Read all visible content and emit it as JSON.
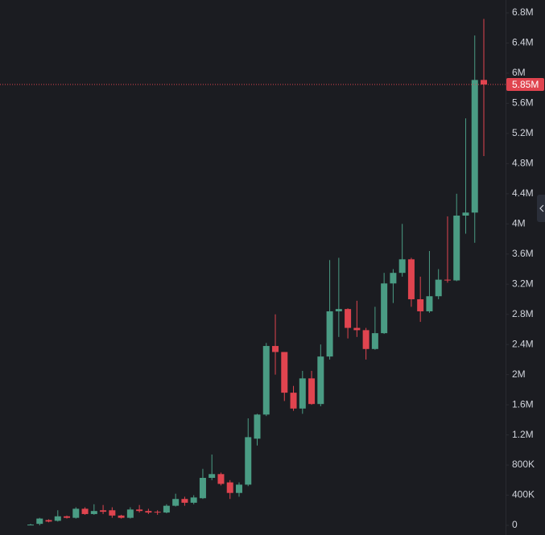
{
  "chart_data": {
    "type": "candlestick",
    "open": [
      5000,
      20000,
      70000,
      60000,
      120000,
      100000,
      220000,
      150000,
      200000,
      200000,
      130000,
      100000,
      210000,
      190000,
      180000,
      170000,
      260000,
      350000,
      300000,
      360000,
      630000,
      680000,
      570000,
      430000,
      540000,
      1150000,
      1470000,
      2380000,
      2300000,
      1760000,
      1550000,
      1950000,
      1610000,
      2240000,
      2840000,
      2870000,
      2620000,
      2590000,
      2340000,
      2550000,
      3210000,
      3350000,
      3530000,
      3000000,
      2840000,
      3040000,
      3260000,
      3250000,
      4110000,
      4150000,
      5910000
    ],
    "high": [
      20000,
      100000,
      80000,
      200000,
      130000,
      240000,
      240000,
      280000,
      270000,
      240000,
      140000,
      240000,
      270000,
      220000,
      200000,
      280000,
      420000,
      380000,
      400000,
      750000,
      940000,
      700000,
      600000,
      570000,
      1420000,
      1480000,
      2420000,
      2800000,
      2300000,
      1850000,
      2050000,
      2050000,
      2400000,
      3520000,
      3550000,
      2880000,
      2980000,
      2620000,
      2900000,
      3350000,
      3400000,
      4000000,
      3550000,
      3300000,
      3640000,
      3400000,
      4100000,
      4400000,
      5400000,
      6500000,
      6720000
    ],
    "low": [
      0,
      0,
      40000,
      50000,
      90000,
      90000,
      140000,
      140000,
      150000,
      100000,
      90000,
      90000,
      170000,
      150000,
      140000,
      160000,
      250000,
      260000,
      280000,
      350000,
      600000,
      530000,
      350000,
      380000,
      520000,
      1060000,
      1450000,
      2000000,
      1650000,
      1520000,
      1480000,
      1600000,
      1580000,
      2200000,
      2500000,
      2480000,
      2500000,
      2200000,
      2330000,
      2540000,
      2950000,
      3300000,
      2900000,
      2700000,
      2820000,
      3000000,
      3220000,
      3240000,
      3870000,
      3750000,
      4900000
    ],
    "close": [
      10000,
      90000,
      50000,
      120000,
      100000,
      220000,
      150000,
      190000,
      180000,
      130000,
      100000,
      210000,
      190000,
      170000,
      170000,
      260000,
      350000,
      300000,
      370000,
      630000,
      680000,
      550000,
      430000,
      540000,
      1170000,
      1470000,
      2380000,
      2300000,
      1760000,
      1550000,
      1950000,
      1610000,
      2240000,
      2840000,
      2870000,
      2620000,
      2590000,
      2340000,
      2550000,
      3210000,
      3350000,
      3530000,
      3000000,
      2840000,
      3040000,
      3260000,
      3250000,
      4110000,
      4150000,
      5910000,
      5850000
    ],
    "up_color": "#4a9c84",
    "down_color": "#e0444f",
    "ylim": [
      0,
      6800000
    ],
    "yticks": [
      0,
      {
        "value": 400000,
        "label": "400K"
      },
      {
        "value": 800000,
        "label": "800K"
      },
      {
        "value": 1200000,
        "label": "1.2M"
      },
      {
        "value": 1600000,
        "label": "1.6M"
      },
      {
        "value": 2000000,
        "label": "2M"
      },
      {
        "value": 2400000,
        "label": "2.4M"
      },
      {
        "value": 2800000,
        "label": "2.8M"
      },
      {
        "value": 3200000,
        "label": "3.2M"
      },
      {
        "value": 3600000,
        "label": "3.6M"
      },
      {
        "value": 4000000,
        "label": "4M"
      },
      {
        "value": 4400000,
        "label": "4.4M"
      },
      {
        "value": 4800000,
        "label": "4.8M"
      },
      {
        "value": 5200000,
        "label": "5.2M"
      },
      {
        "value": 5600000,
        "label": "5.6M"
      },
      {
        "value": 6000000,
        "label": "6M"
      },
      {
        "value": 6400000,
        "label": "6.4M"
      },
      {
        "value": 6800000,
        "label": "6.8M"
      }
    ],
    "last_price": {
      "value": 5850000,
      "label": "5.85M"
    }
  }
}
